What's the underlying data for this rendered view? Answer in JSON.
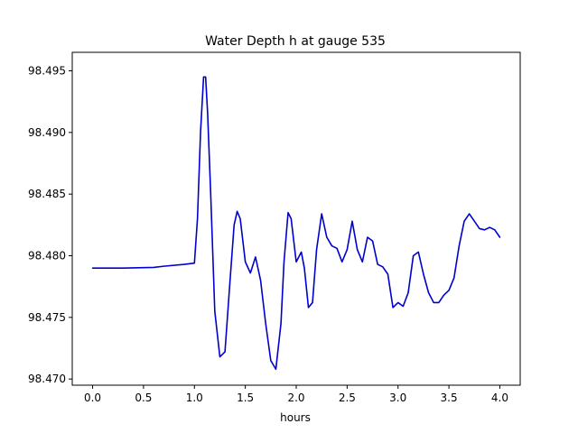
{
  "chart_data": {
    "type": "line",
    "title": "Water Depth h at gauge 535",
    "xlabel": "hours",
    "ylabel": "",
    "xlim": [
      -0.2,
      4.2
    ],
    "ylim": [
      98.4695,
      98.4965
    ],
    "xticks": [
      0.0,
      0.5,
      1.0,
      1.5,
      2.0,
      2.5,
      3.0,
      3.5,
      4.0
    ],
    "xtick_labels": [
      "0.0",
      "0.5",
      "1.0",
      "1.5",
      "2.0",
      "2.5",
      "3.0",
      "3.5",
      "4.0"
    ],
    "yticks": [
      98.47,
      98.475,
      98.48,
      98.485,
      98.49,
      98.495
    ],
    "ytick_labels": [
      "98.470",
      "98.475",
      "98.480",
      "98.485",
      "98.490",
      "98.495"
    ],
    "grid": false,
    "series": [
      {
        "color": "#0000cc",
        "x": [
          0.0,
          0.3,
          0.6,
          0.7,
          0.9,
          1.0,
          1.03,
          1.06,
          1.09,
          1.11,
          1.13,
          1.16,
          1.2,
          1.25,
          1.3,
          1.35,
          1.39,
          1.42,
          1.45,
          1.5,
          1.55,
          1.6,
          1.65,
          1.7,
          1.75,
          1.8,
          1.85,
          1.88,
          1.92,
          1.95,
          2.0,
          2.05,
          2.08,
          2.12,
          2.16,
          2.2,
          2.25,
          2.3,
          2.35,
          2.4,
          2.45,
          2.5,
          2.55,
          2.6,
          2.65,
          2.7,
          2.75,
          2.8,
          2.85,
          2.9,
          2.95,
          3.0,
          3.05,
          3.1,
          3.15,
          3.2,
          3.25,
          3.3,
          3.35,
          3.4,
          3.45,
          3.5,
          3.55,
          3.6,
          3.65,
          3.7,
          3.75,
          3.8,
          3.85,
          3.9,
          3.95,
          4.0
        ],
        "y": [
          98.479,
          98.479,
          98.47905,
          98.47915,
          98.4793,
          98.4794,
          98.483,
          98.49,
          98.4945,
          98.4945,
          98.4915,
          98.485,
          98.4755,
          98.4718,
          98.4722,
          98.478,
          98.4825,
          98.4836,
          98.483,
          98.4795,
          98.4786,
          98.4799,
          98.478,
          98.4745,
          98.4715,
          98.4708,
          98.4745,
          98.4795,
          98.4835,
          98.483,
          98.4795,
          98.4803,
          98.479,
          98.4758,
          98.4762,
          98.4805,
          98.4834,
          98.4815,
          98.4808,
          98.4806,
          98.4795,
          98.4805,
          98.4828,
          98.4805,
          98.4795,
          98.4815,
          98.4812,
          98.4793,
          98.4791,
          98.4785,
          98.4758,
          98.4762,
          98.4759,
          98.477,
          98.48,
          98.4803,
          98.4785,
          98.477,
          98.4762,
          98.4762,
          98.4768,
          98.4772,
          98.4782,
          98.4808,
          98.4828,
          98.4834,
          98.4828,
          98.4822,
          98.4821,
          98.4823,
          98.4821,
          98.4815
        ]
      }
    ]
  }
}
